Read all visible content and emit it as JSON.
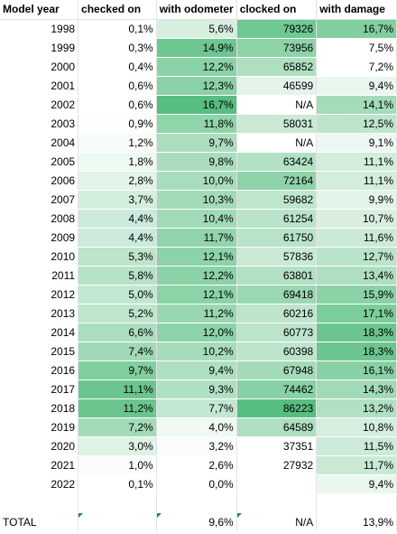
{
  "headers": [
    "Model year",
    "checked on",
    "with odometer",
    "clocked on",
    "with damage"
  ],
  "rows": [
    {
      "year": "1998",
      "checked": "0,1%",
      "odometer": "5,6%",
      "clocked": "79326",
      "damage": "16,7%",
      "colors": [
        "#ffffff",
        "#d6efdf",
        "#70c893",
        "#81cfa0"
      ]
    },
    {
      "year": "1999",
      "checked": "0,3%",
      "odometer": "14,9%",
      "clocked": "73956",
      "damage": "7,5%",
      "colors": [
        "#ffffff",
        "#6ec691",
        "#8dd3a8",
        "#ffffff"
      ]
    },
    {
      "year": "2000",
      "checked": "0,4%",
      "odometer": "12,2%",
      "clocked": "65852",
      "damage": "7,2%",
      "colors": [
        "#ffffff",
        "#8bd2a7",
        "#addfc0",
        "#ffffff"
      ]
    },
    {
      "year": "2001",
      "checked": "0,6%",
      "odometer": "12,3%",
      "clocked": "46599",
      "damage": "9,4%",
      "colors": [
        "#ffffff",
        "#8ad2a6",
        "#e4f4ea",
        "#eaf7ef"
      ]
    },
    {
      "year": "2002",
      "checked": "0,6%",
      "odometer": "16,7%",
      "clocked": "N/A",
      "damage": "14,1%",
      "colors": [
        "#ffffff",
        "#57bd80",
        "#ffffff",
        "#a4dcb9"
      ]
    },
    {
      "year": "2003",
      "checked": "0,9%",
      "odometer": "11,8%",
      "clocked": "58031",
      "damage": "12,5%",
      "colors": [
        "#fdfefd",
        "#90d4aa",
        "#c9e9d5",
        "#bde5cc"
      ]
    },
    {
      "year": "2004",
      "checked": "1,2%",
      "odometer": "9,7%",
      "clocked": "N/A",
      "damage": "9,1%",
      "colors": [
        "#f8fcf9",
        "#abdebe",
        "#ffffff",
        "#eef8f2"
      ]
    },
    {
      "year": "2005",
      "checked": "1,8%",
      "odometer": "9,8%",
      "clocked": "63424",
      "damage": "11,1%",
      "colors": [
        "#eff9f3",
        "#aaddbd",
        "#b3e1c4",
        "#d2edda"
      ]
    },
    {
      "year": "2006",
      "checked": "2,8%",
      "odometer": "10,0%",
      "clocked": "72164",
      "damage": "11,1%",
      "colors": [
        "#e2f3e8",
        "#a8ddbc",
        "#8fd3a9",
        "#d2edda"
      ]
    },
    {
      "year": "2007",
      "checked": "3,7%",
      "odometer": "10,3%",
      "clocked": "59682",
      "damage": "9,9%",
      "colors": [
        "#d4eede",
        "#a3dbb8",
        "#c0e6ce",
        "#e2f4e9"
      ]
    },
    {
      "year": "2008",
      "checked": "4,4%",
      "odometer": "10,4%",
      "clocked": "61254",
      "damage": "10,7%",
      "colors": [
        "#cbeadc",
        "#a2dab7",
        "#bae4ca",
        "#d8efe0"
      ]
    },
    {
      "year": "2009",
      "checked": "4,4%",
      "odometer": "11,7%",
      "clocked": "61750",
      "damage": "11,6%",
      "colors": [
        "#cbeadc",
        "#91d4ab",
        "#b8e3c8",
        "#cbead6"
      ]
    },
    {
      "year": "2010",
      "checked": "5,3%",
      "odometer": "12,1%",
      "clocked": "57836",
      "damage": "12,7%",
      "colors": [
        "#bee5cc",
        "#8cd3a8",
        "#c9e9d5",
        "#bae4ca"
      ]
    },
    {
      "year": "2011",
      "checked": "5,8%",
      "odometer": "12,2%",
      "clocked": "63801",
      "damage": "13,4%",
      "colors": [
        "#b6e2c6",
        "#8bd2a7",
        "#b1e0c3",
        "#afdfc1"
      ]
    },
    {
      "year": "2012",
      "checked": "5,0%",
      "odometer": "12,1%",
      "clocked": "69418",
      "damage": "15,9%",
      "colors": [
        "#c2e7d0",
        "#8cd3a8",
        "#9bd8b2",
        "#8bd2a7"
      ]
    },
    {
      "year": "2013",
      "checked": "5,2%",
      "odometer": "11,2%",
      "clocked": "60216",
      "damage": "17,1%",
      "colors": [
        "#bfe5cd",
        "#99d7b1",
        "#bee5cc",
        "#7bcd9b"
      ]
    },
    {
      "year": "2014",
      "checked": "6,6%",
      "odometer": "12,0%",
      "clocked": "60773",
      "damage": "18,3%",
      "colors": [
        "#abdebe",
        "#8dd3a9",
        "#bce4cb",
        "#6cc58f"
      ]
    },
    {
      "year": "2015",
      "checked": "7,4%",
      "odometer": "10,2%",
      "clocked": "60398",
      "damage": "18,3%",
      "colors": [
        "#a0d9b6",
        "#a5dcba",
        "#bde5cc",
        "#6cc58f"
      ]
    },
    {
      "year": "2016",
      "checked": "9,7%",
      "odometer": "9,4%",
      "clocked": "67948",
      "damage": "16,1%",
      "colors": [
        "#80cf9f",
        "#afdfc1",
        "#a3dbb8",
        "#88d1a5"
      ]
    },
    {
      "year": "2017",
      "checked": "11,1%",
      "odometer": "9,3%",
      "clocked": "74462",
      "damage": "14,3%",
      "colors": [
        "#6cc58f",
        "#b0e0c2",
        "#87d1a4",
        "#a2dab7"
      ]
    },
    {
      "year": "2018",
      "checked": "11,2%",
      "odometer": "7,7%",
      "clocked": "86223",
      "damage": "13,2%",
      "colors": [
        "#6bc58e",
        "#c4e7d1",
        "#57bd80",
        "#b1e0c3"
      ]
    },
    {
      "year": "2019",
      "checked": "7,2%",
      "odometer": "4,0%",
      "clocked": "64589",
      "damage": "10,8%",
      "colors": [
        "#a3dbb8",
        "#f0f9f3",
        "#afdfc1",
        "#d6eedf"
      ]
    },
    {
      "year": "2020",
      "checked": "3,0%",
      "odometer": "3,2%",
      "clocked": "37351",
      "damage": "11,5%",
      "colors": [
        "#dff2e6",
        "#fafdfb",
        "#ffffff",
        "#cceada"
      ]
    },
    {
      "year": "2021",
      "checked": "1,0%",
      "odometer": "2,6%",
      "clocked": "27932",
      "damage": "11,7%",
      "colors": [
        "#fbfdfc",
        "#ffffff",
        "#ffffff",
        "#c9e9d5"
      ]
    },
    {
      "year": "2022",
      "checked": "0,1%",
      "odometer": "0,0%",
      "clocked": "",
      "damage": "9,4%",
      "colors": [
        "#ffffff",
        "#ffffff",
        "#ffffff",
        "#eaf7ef"
      ]
    }
  ],
  "total": {
    "label": "TOTAL",
    "checked": "",
    "odometer": "9,6%",
    "clocked": "N/A",
    "damage": "13,9%"
  }
}
